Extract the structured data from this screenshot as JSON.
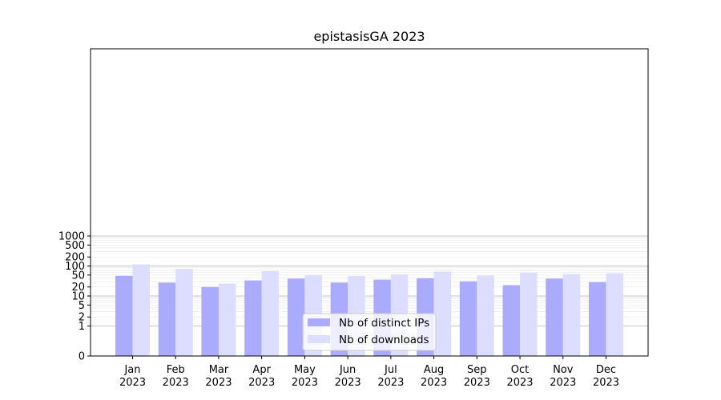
{
  "chart_data": {
    "type": "bar",
    "title": "epistasisGA 2023",
    "xlabel": "",
    "ylabel": "",
    "y_scale": "symlog",
    "y_ticks": [
      0,
      1,
      2,
      5,
      10,
      20,
      50,
      100,
      200,
      500,
      1000
    ],
    "categories": [
      {
        "month": "Jan",
        "year": "2023"
      },
      {
        "month": "Feb",
        "year": "2023"
      },
      {
        "month": "Mar",
        "year": "2023"
      },
      {
        "month": "Apr",
        "year": "2023"
      },
      {
        "month": "May",
        "year": "2023"
      },
      {
        "month": "Jun",
        "year": "2023"
      },
      {
        "month": "Jul",
        "year": "2023"
      },
      {
        "month": "Aug",
        "year": "2023"
      },
      {
        "month": "Sep",
        "year": "2023"
      },
      {
        "month": "Oct",
        "year": "2023"
      },
      {
        "month": "Nov",
        "year": "2023"
      },
      {
        "month": "Dec",
        "year": "2023"
      }
    ],
    "series": [
      {
        "name": "Nb of distinct IPs",
        "color": "#aaaaff",
        "values": [
          47,
          28,
          20,
          33,
          38,
          28,
          35,
          39,
          31,
          23,
          38,
          29
        ]
      },
      {
        "name": "Nb of downloads",
        "color": "#ddddff",
        "values": [
          113,
          80,
          26,
          67,
          49,
          46,
          53,
          65,
          48,
          60,
          54,
          57
        ]
      }
    ],
    "legend_position": "bottom-center",
    "grid": true
  }
}
